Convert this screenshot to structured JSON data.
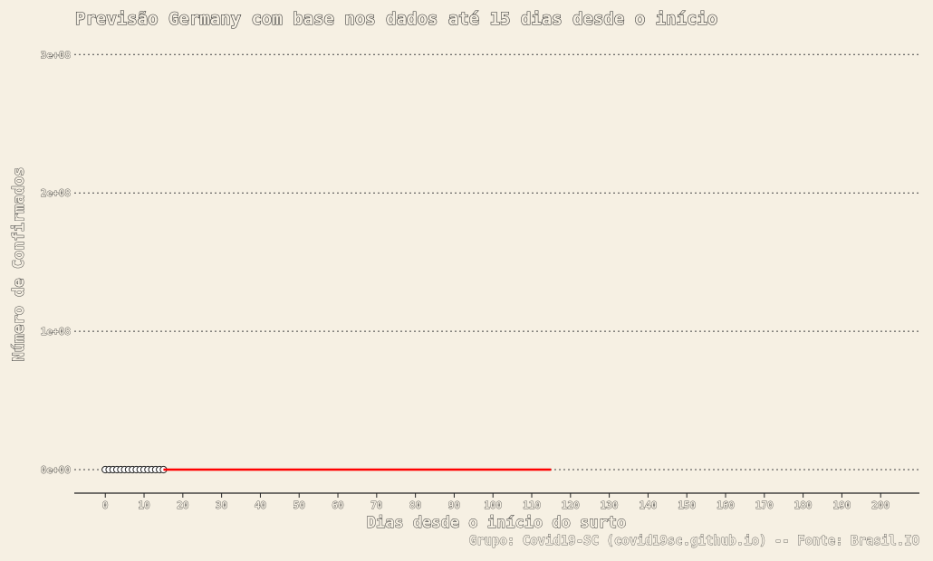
{
  "chart_data": {
    "type": "line",
    "title": "Previsão Germany com base nos dados até 15 dias desde o início",
    "xlabel": "Dias desde o início do surto",
    "ylabel": "Número de Confirmados",
    "caption": "Grupo: Covid19-SC (covid19sc.github.io) -- Fonte: Brasil.IO",
    "xlim": [
      -8,
      210
    ],
    "ylim": [
      -17000000.0,
      310000000.0
    ],
    "x_ticks": [
      0,
      10,
      20,
      30,
      40,
      50,
      60,
      70,
      80,
      90,
      100,
      110,
      120,
      130,
      140,
      150,
      160,
      170,
      180,
      190,
      200
    ],
    "y_ticks": [
      0,
      100000000,
      200000000,
      300000000
    ],
    "y_tick_labels": [
      "0e+00",
      "1e+08",
      "2e+08",
      "3e+08"
    ],
    "grid": "horizontal dotted",
    "series": [
      {
        "kind": "points",
        "color": "#ffffff",
        "x": [
          0,
          1,
          2,
          3,
          4,
          5,
          6,
          7,
          8,
          9,
          10,
          11,
          12,
          13,
          14,
          15
        ],
        "y": [
          16,
          16,
          16,
          16,
          16,
          16,
          16,
          16,
          16,
          16,
          16,
          16,
          16,
          16,
          16,
          16
        ]
      },
      {
        "kind": "line",
        "color": "#ff0000",
        "x": [
          15,
          20,
          30,
          40,
          50,
          60,
          70,
          80,
          90,
          100,
          110,
          115
        ],
        "y": [
          16,
          16,
          16,
          16,
          16,
          16,
          16,
          16,
          16,
          16,
          16,
          16
        ]
      }
    ]
  }
}
